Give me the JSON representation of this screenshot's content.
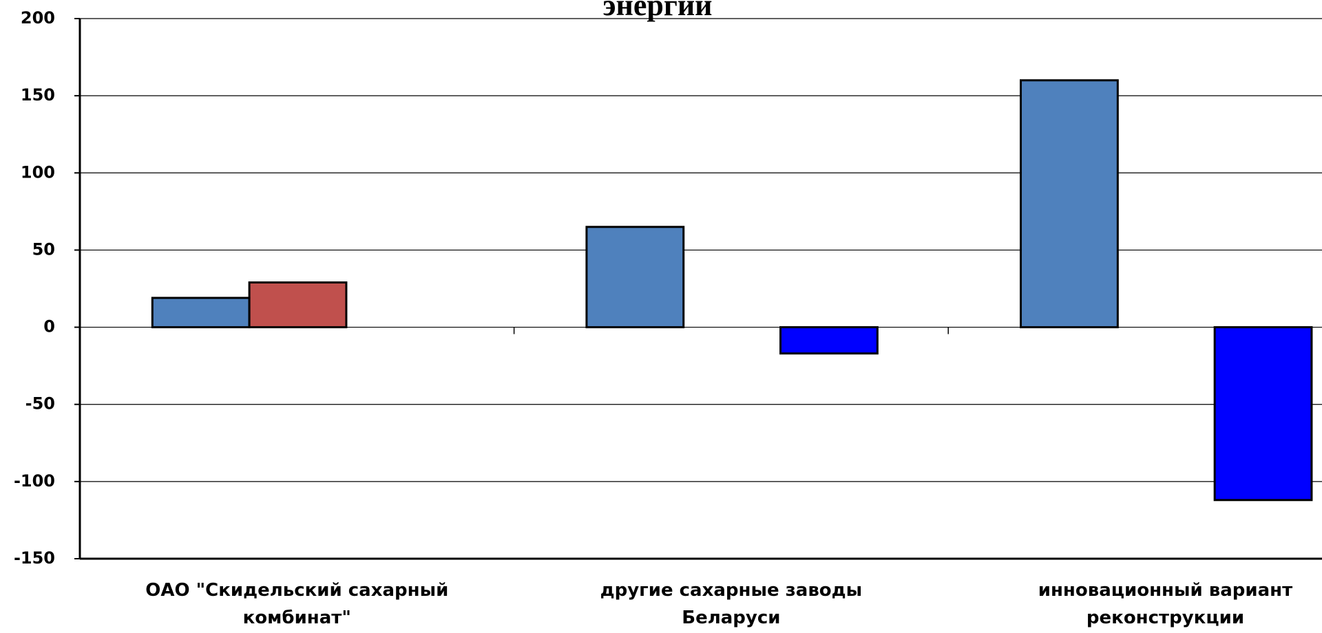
{
  "chart_data": {
    "type": "bar",
    "title": "энергии",
    "categories": [
      "ОАО \"Скидельский сахарный комбинат\"",
      "другие сахарные заводы Беларуси",
      "инновационный вариант реконструкции"
    ],
    "series": [
      {
        "color": "#4f81bd",
        "values": [
          19,
          65,
          160
        ]
      },
      {
        "color": "#c0504d",
        "values": [
          29,
          null,
          null
        ]
      },
      {
        "color": "#0000ff",
        "values": [
          null,
          -17,
          -112
        ]
      }
    ],
    "ylim": [
      -150,
      200
    ],
    "yticks": [
      -150,
      -100,
      -50,
      0,
      50,
      100,
      150,
      200
    ],
    "grid": true
  }
}
